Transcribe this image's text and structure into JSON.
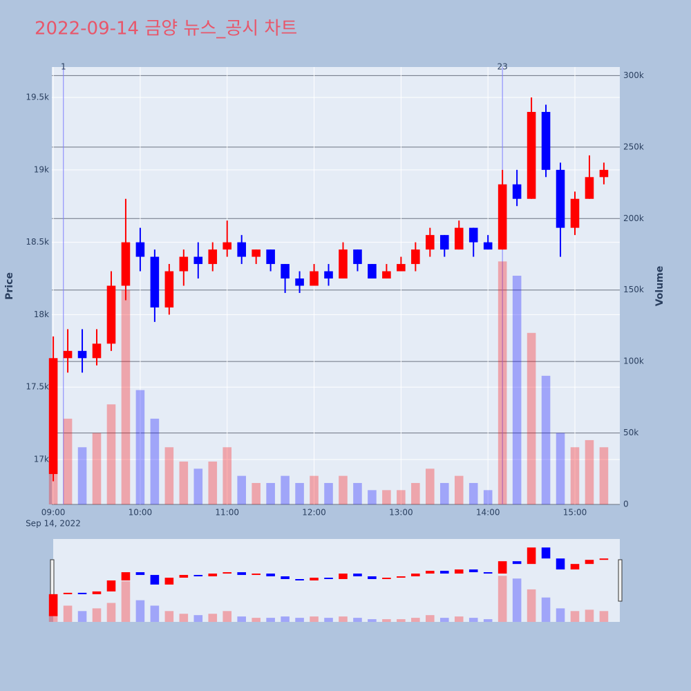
{
  "chart_data": {
    "type": "candlestick",
    "title": "2022-09-14 금양 뉴스_공시 차트",
    "y_label": "Price",
    "y2_label": "Volume",
    "x_date_label": "Sep 14, 2022",
    "up_color": "#ff0000",
    "down_color": "#0000ff",
    "x": [
      "09:00",
      "09:10",
      "09:20",
      "09:30",
      "09:40",
      "09:50",
      "10:00",
      "10:10",
      "10:20",
      "10:30",
      "10:40",
      "10:50",
      "11:00",
      "11:10",
      "11:20",
      "11:30",
      "11:40",
      "11:50",
      "12:00",
      "12:10",
      "12:20",
      "12:30",
      "12:40",
      "12:50",
      "13:00",
      "13:10",
      "13:20",
      "13:30",
      "13:40",
      "13:50",
      "14:00",
      "14:10",
      "14:20",
      "14:30",
      "14:40",
      "14:50",
      "15:00",
      "15:10",
      "15:20"
    ],
    "open": [
      16900,
      17700,
      17750,
      17700,
      17800,
      18200,
      18500,
      18400,
      18050,
      18300,
      18400,
      18350,
      18450,
      18500,
      18400,
      18450,
      18350,
      18250,
      18200,
      18300,
      18250,
      18450,
      18350,
      18250,
      18300,
      18350,
      18450,
      18550,
      18450,
      18600,
      18500,
      18450,
      18900,
      18800,
      19400,
      19000,
      18600,
      18800,
      18950
    ],
    "high": [
      17850,
      17900,
      17900,
      17900,
      18300,
      18800,
      18600,
      18450,
      18350,
      18450,
      18500,
      18500,
      18650,
      18550,
      18450,
      18450,
      18350,
      18300,
      18350,
      18350,
      18500,
      18450,
      18350,
      18350,
      18400,
      18500,
      18600,
      18550,
      18650,
      18600,
      18550,
      19000,
      19000,
      19500,
      19450,
      19050,
      18850,
      19100,
      19050
    ],
    "low": [
      16850,
      17600,
      17600,
      17650,
      17750,
      18100,
      18300,
      17950,
      18000,
      18200,
      18250,
      18300,
      18400,
      18350,
      18350,
      18300,
      18150,
      18150,
      18200,
      18200,
      18250,
      18300,
      18250,
      18250,
      18300,
      18300,
      18400,
      18400,
      18450,
      18400,
      18450,
      18450,
      18750,
      18800,
      18950,
      18400,
      18550,
      18800,
      18900
    ],
    "close": [
      17700,
      17750,
      17700,
      17800,
      18200,
      18500,
      18400,
      18050,
      18300,
      18400,
      18350,
      18450,
      18500,
      18400,
      18450,
      18350,
      18250,
      18200,
      18300,
      18250,
      18450,
      18350,
      18250,
      18300,
      18350,
      18450,
      18550,
      18450,
      18600,
      18500,
      18450,
      18900,
      18800,
      19400,
      19000,
      18600,
      18800,
      18950,
      19000
    ],
    "volume": [
      30000,
      60000,
      40000,
      50000,
      70000,
      150000,
      80000,
      60000,
      40000,
      30000,
      25000,
      30000,
      40000,
      20000,
      15000,
      15000,
      20000,
      15000,
      20000,
      15000,
      20000,
      15000,
      10000,
      10000,
      10000,
      15000,
      25000,
      15000,
      20000,
      15000,
      10000,
      170000,
      160000,
      120000,
      90000,
      50000,
      40000,
      45000,
      40000
    ],
    "xlim": [
      "08:59",
      "15:31"
    ],
    "xticks": [
      "09:00",
      "10:00",
      "11:00",
      "12:00",
      "13:00",
      "14:00",
      "15:00"
    ],
    "ylim": [
      16690,
      19710
    ],
    "yticks": [
      {
        "value": 17000,
        "label": "17k"
      },
      {
        "value": 17500,
        "label": "17.5k"
      },
      {
        "value": 18000,
        "label": "18k"
      },
      {
        "value": 18500,
        "label": "18.5k"
      },
      {
        "value": 19000,
        "label": "19k"
      },
      {
        "value": 19500,
        "label": "19.5k"
      }
    ],
    "y2lim": [
      0,
      306000
    ],
    "y2ticks": [
      0,
      {
        "value": 50000,
        "label": "50k"
      },
      {
        "value": 100000,
        "label": "100k"
      },
      {
        "value": 150000,
        "label": "150k"
      },
      {
        "value": 200000,
        "label": "200k"
      },
      {
        "value": 250000,
        "label": "250k"
      },
      {
        "value": 300000,
        "label": "300k"
      }
    ],
    "news_markers": [
      {
        "x": "09:07",
        "label": "1"
      },
      {
        "x": "14:10",
        "label": "23"
      }
    ]
  }
}
